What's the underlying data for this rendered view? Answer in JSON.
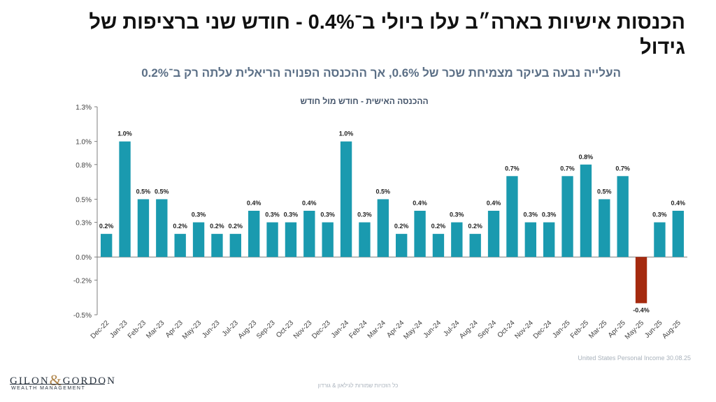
{
  "title": "הכנסות אישיות בארה״ב עלו ביולי ב־0.4% - חודש שני ברציפות של גידול",
  "subtitle": "העלייה נבעה בעיקר מצמיחת שכר של 0.6%, אך ההכנסה הפנויה הריאלית עלתה רק ב־0.2%",
  "source": "United States Personal Income 30.08.25",
  "footer": "כל הזכויות שמורות לגילאון & גורדון",
  "logo": {
    "main_left": "GILON",
    "amp": "&",
    "main_right": "GORDON",
    "sub": "WEALTH MANAGEMENT"
  },
  "colors": {
    "bar": "#1a9aaf",
    "negative_bar": "#a52a0f",
    "axis": "#7f7f7f",
    "chart_title": "#44546a"
  },
  "chart_data": {
    "type": "bar",
    "title": "ההכנסה האישית - חודש מול חודש",
    "xlabel": "",
    "ylabel": "",
    "ylim": [
      -0.5,
      1.3
    ],
    "yticks": [
      1.3,
      1.0,
      0.8,
      0.5,
      0.3,
      0.0,
      -0.2,
      -0.5
    ],
    "ytick_labels": [
      "1.3%",
      "1.0%",
      "0.8%",
      "0.5%",
      "0.3%",
      "0.0%",
      "-0.2%",
      "-0.5%"
    ],
    "grid": false,
    "legend": "none",
    "categories": [
      "Dec-22",
      "Jan-23",
      "Feb-23",
      "Mar-23",
      "Apr-23",
      "May-23",
      "Jun-23",
      "Jul-23",
      "Aug-23",
      "Sep-23",
      "Oct-23",
      "Nov-23",
      "Dec-23",
      "Jan-24",
      "Feb-24",
      "Mar-24",
      "Apr-24",
      "May-24",
      "Jun-24",
      "Jul-24",
      "Aug-24",
      "Sep-24",
      "Oct-24",
      "Nov-24",
      "Dec-24",
      "Jan-25",
      "Feb-25",
      "Mar-25",
      "Apr-25",
      "May-25",
      "Jun-25",
      "Aug-25"
    ],
    "values": [
      0.2,
      1.0,
      0.5,
      0.5,
      0.2,
      0.3,
      0.2,
      0.2,
      0.4,
      0.3,
      0.3,
      0.4,
      0.3,
      1.0,
      0.3,
      0.5,
      0.2,
      0.4,
      0.2,
      0.3,
      0.2,
      0.4,
      0.7,
      0.3,
      0.3,
      0.7,
      0.8,
      0.5,
      0.7,
      -0.4,
      0.3,
      0.4
    ],
    "data_labels": [
      "0.2%",
      "1.0%",
      "0.5%",
      "0.5%",
      "0.2%",
      "0.3%",
      "0.2%",
      "0.2%",
      "0.4%",
      "0.3%",
      "0.3%",
      "0.4%",
      "0.3%",
      "1.0%",
      "0.3%",
      "0.5%",
      "0.2%",
      "0.4%",
      "0.2%",
      "0.3%",
      "0.2%",
      "0.4%",
      "0.7%",
      "0.3%",
      "0.3%",
      "0.7%",
      "0.8%",
      "0.5%",
      "0.7%",
      "-0.4%",
      "0.3%",
      "0.4%"
    ]
  }
}
